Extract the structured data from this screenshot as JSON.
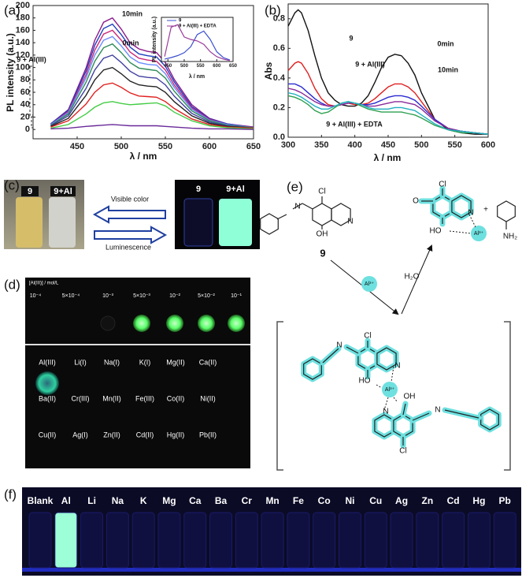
{
  "chart_data": [
    {
      "type": "line",
      "label": "(a)",
      "x_label": "λ / nm",
      "y_label": "PL intensity (a.u.)",
      "x": [
        420,
        440,
        460,
        470,
        480,
        490,
        500,
        510,
        520,
        530,
        540,
        550,
        560,
        580,
        600,
        620,
        650
      ],
      "series": [
        {
          "color": "#8b1a8b",
          "values": [
            9,
            32,
            99,
            144,
            173,
            180,
            162,
            140,
            130,
            126,
            124,
            108,
            81,
            40,
            18,
            9,
            4
          ]
        },
        {
          "color": "#1f3fbf",
          "values": [
            9,
            31,
            94,
            136,
            163,
            170,
            153,
            133,
            122,
            119,
            117,
            102,
            77,
            37,
            17,
            9,
            3
          ]
        },
        {
          "color": "#cc2a7a",
          "values": [
            8,
            29,
            88,
            128,
            154,
            160,
            144,
            125,
            115,
            112,
            110,
            96,
            72,
            35,
            16,
            8,
            3
          ]
        },
        {
          "color": "#6a8cff",
          "values": [
            8,
            27,
            83,
            120,
            144,
            150,
            135,
            117,
            108,
            105,
            104,
            90,
            68,
            33,
            15,
            8,
            3
          ]
        },
        {
          "color": "#2e8b57",
          "values": [
            7,
            25,
            76,
            110,
            132,
            138,
            124,
            108,
            99,
            97,
            95,
            83,
            62,
            30,
            14,
            7,
            3
          ]
        },
        {
          "color": "#4040a0",
          "values": [
            6,
            22,
            66,
            96,
            115,
            120,
            108,
            94,
            86,
            84,
            83,
            72,
            54,
            26,
            12,
            6,
            2
          ]
        },
        {
          "color": "#222222",
          "values": [
            5,
            18,
            55,
            80,
            96,
            100,
            90,
            78,
            72,
            70,
            69,
            60,
            45,
            22,
            10,
            5,
            2
          ]
        },
        {
          "color": "#e02020",
          "values": [
            4,
            14,
            41,
            60,
            72,
            75,
            68,
            59,
            54,
            53,
            52,
            45,
            34,
            17,
            8,
            4,
            2
          ]
        },
        {
          "color": "#44cc44",
          "values": [
            2,
            8,
            25,
            36,
            43,
            45,
            42,
            40,
            41,
            42,
            43,
            38,
            28,
            14,
            6,
            3,
            1
          ]
        },
        {
          "color": "#6a2a9a",
          "values": [
            1,
            2,
            5,
            6,
            7,
            8,
            7,
            6,
            6,
            6,
            6,
            5,
            4,
            2,
            1,
            1,
            0
          ]
        }
      ],
      "xlim": [
        400,
        650
      ],
      "xticks": [
        450,
        500,
        550,
        600,
        650
      ],
      "ylim": [
        -15,
        200
      ],
      "yticks": [
        0,
        20,
        40,
        60,
        80,
        100,
        120,
        140,
        160,
        180,
        200
      ],
      "annotations": [
        "10min",
        "0min",
        "9 + Al(III)"
      ]
    },
    {
      "type": "line",
      "x_label": "λ / nm",
      "y_label": "PL intensity (a.u.)",
      "x": [
        440,
        460,
        480,
        500,
        520,
        540,
        560,
        580,
        600,
        620,
        640
      ],
      "series": [
        {
          "name": "9",
          "color": "#3a4fd0",
          "values": [
            5,
            8,
            12,
            18,
            30,
            55,
            62,
            45,
            20,
            8,
            3
          ]
        },
        {
          "name": "9 + Al(III) + EDTA",
          "color": "#9a3a9a",
          "values": [
            10,
            70,
            75,
            50,
            45,
            42,
            35,
            20,
            10,
            5,
            2
          ]
        }
      ],
      "xlim": [
        430,
        650
      ],
      "xticks": [
        450,
        500,
        550,
        600,
        650
      ],
      "ylim": [
        0,
        90
      ]
    },
    {
      "type": "line",
      "label": "(b)",
      "x_label": "λ / nm",
      "y_label": "Abs",
      "x": [
        300,
        310,
        315,
        320,
        330,
        340,
        350,
        360,
        370,
        380,
        390,
        400,
        410,
        420,
        430,
        440,
        450,
        460,
        470,
        480,
        490,
        500,
        520,
        540,
        560,
        580,
        600
      ],
      "series": [
        {
          "color": "#111111",
          "values": [
            0.75,
            0.84,
            0.86,
            0.84,
            0.72,
            0.55,
            0.4,
            0.3,
            0.25,
            0.22,
            0.21,
            0.21,
            0.23,
            0.28,
            0.37,
            0.47,
            0.54,
            0.56,
            0.55,
            0.5,
            0.42,
            0.3,
            0.12,
            0.05,
            0.03,
            0.02,
            0.02
          ]
        },
        {
          "color": "#e02020",
          "values": [
            0.45,
            0.5,
            0.51,
            0.5,
            0.43,
            0.33,
            0.26,
            0.22,
            0.21,
            0.22,
            0.23,
            0.22,
            0.22,
            0.23,
            0.26,
            0.3,
            0.34,
            0.36,
            0.36,
            0.34,
            0.3,
            0.24,
            0.12,
            0.06,
            0.04,
            0.03,
            0.02
          ]
        },
        {
          "color": "#2a2ad0",
          "values": [
            0.36,
            0.36,
            0.35,
            0.34,
            0.3,
            0.26,
            0.23,
            0.21,
            0.21,
            0.22,
            0.23,
            0.23,
            0.22,
            0.22,
            0.23,
            0.25,
            0.27,
            0.28,
            0.28,
            0.27,
            0.25,
            0.21,
            0.12,
            0.06,
            0.04,
            0.03,
            0.02
          ]
        },
        {
          "color": "#8a2a9a",
          "values": [
            0.33,
            0.32,
            0.31,
            0.3,
            0.27,
            0.24,
            0.22,
            0.21,
            0.21,
            0.22,
            0.23,
            0.23,
            0.22,
            0.21,
            0.21,
            0.22,
            0.23,
            0.24,
            0.24,
            0.23,
            0.22,
            0.19,
            0.11,
            0.06,
            0.04,
            0.03,
            0.02
          ]
        },
        {
          "color": "#2ea050",
          "values": [
            0.28,
            0.27,
            0.26,
            0.25,
            0.22,
            0.18,
            0.16,
            0.17,
            0.2,
            0.23,
            0.24,
            0.23,
            0.21,
            0.19,
            0.18,
            0.17,
            0.17,
            0.17,
            0.17,
            0.16,
            0.15,
            0.13,
            0.08,
            0.05,
            0.03,
            0.03,
            0.02
          ]
        },
        {
          "color": "#20b0c0",
          "values": [
            0.3,
            0.29,
            0.28,
            0.27,
            0.24,
            0.21,
            0.19,
            0.19,
            0.21,
            0.23,
            0.24,
            0.23,
            0.22,
            0.2,
            0.19,
            0.19,
            0.19,
            0.2,
            0.2,
            0.19,
            0.18,
            0.15,
            0.09,
            0.05,
            0.04,
            0.03,
            0.02
          ]
        }
      ],
      "xlim": [
        300,
        600
      ],
      "xticks": [
        300,
        350,
        400,
        450,
        500,
        550,
        600
      ],
      "ylim": [
        0,
        0.9
      ],
      "yticks": [
        {
          "value": 0,
          "label": "0.0"
        },
        0.2,
        0.4,
        0.6,
        0.8
      ],
      "annotations": [
        "0min",
        "10min",
        "9",
        "9 + Al(III)",
        "9 + Al(III) + EDTA"
      ]
    }
  ],
  "panel_c": {
    "label": "(c)",
    "vials_visible": [
      "9",
      "9+Al"
    ],
    "arrows": [
      "Visible color",
      "Luminescence"
    ],
    "vials_uv": [
      "9",
      "9+Al"
    ]
  },
  "panel_d": {
    "label": "(d)",
    "conc_title": "[Al(III)] / mol/L",
    "concentrations": [
      "10⁻⁴",
      "5×10⁻⁴",
      "10⁻³",
      "5×10⁻³",
      "10⁻²",
      "5×10⁻²",
      "10⁻¹"
    ],
    "ions": [
      [
        "Al(III)",
        "Li(I)",
        "Na(I)",
        "K(I)",
        "Mg(II)",
        "Ca(II)"
      ],
      [
        "Ba(II)",
        "Cr(III)",
        "Mn(II)",
        "Fe(III)",
        "Co(II)",
        "Ni(II)"
      ],
      [
        "Cu(II)",
        "Ag(I)",
        "Zn(II)",
        "Cd(II)",
        "Hg(II)",
        "Pb(II)"
      ]
    ]
  },
  "panel_e": {
    "label": "(e)",
    "labels": [
      "Cl",
      "N",
      "N",
      "OH",
      "9",
      "Al³⁺",
      "Cl",
      "O",
      "HO",
      "N",
      "Al³⁺",
      "+",
      "NH₂",
      "H₂O",
      "Cl",
      "N",
      "N",
      "HO",
      "Al³⁺",
      "OH",
      "N",
      "N",
      "Cl"
    ]
  },
  "panel_f": {
    "label": "(f)",
    "samples": [
      "Blank",
      "Al",
      "Li",
      "Na",
      "K",
      "Mg",
      "Ca",
      "Ba",
      "Cr",
      "Mn",
      "Fe",
      "Co",
      "Ni",
      "Cu",
      "Ag",
      "Zn",
      "Cd",
      "Hg",
      "Pb"
    ]
  }
}
